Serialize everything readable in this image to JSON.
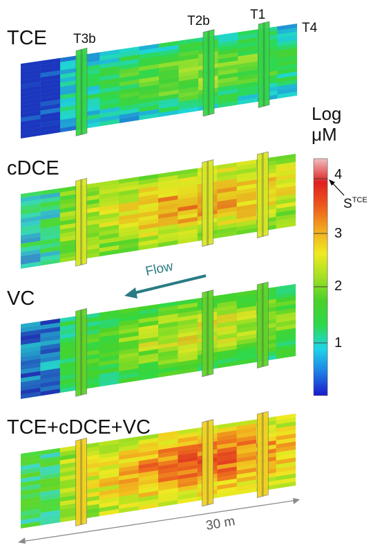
{
  "panels": [
    {
      "title": "TCE",
      "level": 0.3
    },
    {
      "title": "cDCE",
      "level": 0.58
    },
    {
      "title": "VC",
      "level": 0.42
    },
    {
      "title": "TCE+cDCE+VC",
      "level": 0.66
    }
  ],
  "transects": [
    "T3b",
    "T2b",
    "T1",
    "T4"
  ],
  "legend": {
    "title_line1": "Log",
    "title_line2": "μM",
    "ticks": [
      "1",
      "2",
      "3",
      "4"
    ],
    "stce_base": "S",
    "stce_sup": "TCE",
    "colors": [
      "#1a1acc",
      "#1e7fe6",
      "#1fd6e6",
      "#2ed94a",
      "#49d12a",
      "#a3e022",
      "#f0ea22",
      "#f2a91e",
      "#ee5a1c",
      "#e01f1f",
      "#f0c0c0"
    ]
  },
  "flow_label": "Flow",
  "distance_label": "30 m",
  "colors": {
    "flow_arrow": "#2a7b84",
    "scale_arrow": "#8a8a8a"
  }
}
